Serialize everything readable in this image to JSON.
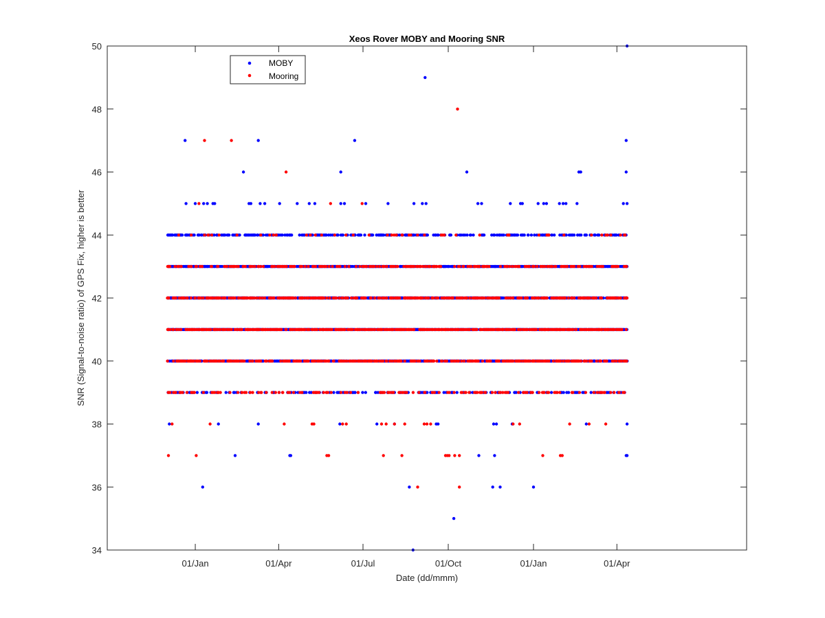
{
  "chart_data": {
    "type": "scatter",
    "title": "Xeos Rover MOBY and Mooring SNR",
    "xlabel": "Date (dd/mmm)",
    "ylabel": "SNR (Signal-to-noise ratio) of GPS Fix, higher is better",
    "xlim_days": [
      -95,
      595
    ],
    "ylim": [
      34,
      50
    ],
    "yticks": [
      34,
      36,
      38,
      40,
      42,
      44,
      46,
      48,
      50
    ],
    "xticks": [
      {
        "label": "01/Jan",
        "day": 0
      },
      {
        "label": "01/Apr",
        "day": 90
      },
      {
        "label": "01/Jul",
        "day": 181
      },
      {
        "label": "01/Oct",
        "day": 273
      },
      {
        "label": "01/Jan",
        "day": 365
      },
      {
        "label": "01/Apr",
        "day": 455
      }
    ],
    "data_range_days": [
      -30,
      466
    ],
    "legend": {
      "position": "top-left",
      "entries": [
        "MOBY",
        "Mooring"
      ]
    },
    "series": [
      {
        "name": "MOBY",
        "color": "#0000ff",
        "dense_levels": [
          {
            "snr": 40,
            "density": 0.55
          },
          {
            "snr": 41,
            "density": 0.75
          },
          {
            "snr": 42,
            "density": 0.7
          },
          {
            "snr": 43,
            "density": 0.6
          },
          {
            "snr": 44,
            "density": 0.3
          },
          {
            "snr": 39,
            "density": 0.18
          }
        ],
        "points": [
          {
            "day": -11,
            "snr": 47
          },
          {
            "day": 68,
            "snr": 47
          },
          {
            "day": 172,
            "snr": 47
          },
          {
            "day": 465,
            "snr": 47
          },
          {
            "day": 52,
            "snr": 46
          },
          {
            "day": 157,
            "snr": 46
          },
          {
            "day": 293,
            "snr": 46
          },
          {
            "day": 414,
            "snr": 46
          },
          {
            "day": 416,
            "snr": 46
          },
          {
            "day": 465,
            "snr": 46
          },
          {
            "day": 248,
            "snr": 49
          },
          {
            "day": 466,
            "snr": 50
          },
          {
            "day": 235,
            "snr": 34
          },
          {
            "day": 279,
            "snr": 35
          },
          {
            "day": -10,
            "snr": 45
          },
          {
            "day": 0,
            "snr": 45
          },
          {
            "day": 9,
            "snr": 45
          },
          {
            "day": 13,
            "snr": 45
          },
          {
            "day": 19,
            "snr": 45
          },
          {
            "day": 21,
            "snr": 45
          },
          {
            "day": 58,
            "snr": 45
          },
          {
            "day": 60,
            "snr": 45
          },
          {
            "day": 70,
            "snr": 45
          },
          {
            "day": 75,
            "snr": 45
          },
          {
            "day": 91,
            "snr": 45
          },
          {
            "day": 110,
            "snr": 45
          },
          {
            "day": 123,
            "snr": 45
          },
          {
            "day": 129,
            "snr": 45
          },
          {
            "day": 157,
            "snr": 45
          },
          {
            "day": 161,
            "snr": 45
          },
          {
            "day": 184,
            "snr": 45
          },
          {
            "day": 208,
            "snr": 45
          },
          {
            "day": 236,
            "snr": 45
          },
          {
            "day": 245,
            "snr": 45
          },
          {
            "day": 249,
            "snr": 45
          },
          {
            "day": 305,
            "snr": 45
          },
          {
            "day": 309,
            "snr": 45
          },
          {
            "day": 340,
            "snr": 45
          },
          {
            "day": 351,
            "snr": 45
          },
          {
            "day": 353,
            "snr": 45
          },
          {
            "day": 370,
            "snr": 45
          },
          {
            "day": 376,
            "snr": 45
          },
          {
            "day": 379,
            "snr": 45
          },
          {
            "day": 393,
            "snr": 45
          },
          {
            "day": 397,
            "snr": 45
          },
          {
            "day": 400,
            "snr": 45
          },
          {
            "day": 412,
            "snr": 45
          },
          {
            "day": 462,
            "snr": 45
          },
          {
            "day": 466,
            "snr": 45
          },
          {
            "day": -28,
            "snr": 38
          },
          {
            "day": 25,
            "snr": 38
          },
          {
            "day": 68,
            "snr": 38
          },
          {
            "day": 156,
            "snr": 38
          },
          {
            "day": 196,
            "snr": 38
          },
          {
            "day": 215,
            "snr": 38
          },
          {
            "day": 260,
            "snr": 38
          },
          {
            "day": 262,
            "snr": 38
          },
          {
            "day": 322,
            "snr": 38
          },
          {
            "day": 325,
            "snr": 38
          },
          {
            "day": 342,
            "snr": 38
          },
          {
            "day": 422,
            "snr": 38
          },
          {
            "day": 466,
            "snr": 38
          },
          {
            "day": 43,
            "snr": 37
          },
          {
            "day": 102,
            "snr": 37
          },
          {
            "day": 103,
            "snr": 37
          },
          {
            "day": 306,
            "snr": 37
          },
          {
            "day": 323,
            "snr": 37
          },
          {
            "day": 465,
            "snr": 37
          },
          {
            "day": 466,
            "snr": 37
          },
          {
            "day": 8,
            "snr": 36
          },
          {
            "day": 231,
            "snr": 36
          },
          {
            "day": 321,
            "snr": 36
          },
          {
            "day": 329,
            "snr": 36
          },
          {
            "day": 365,
            "snr": 36
          }
        ]
      },
      {
        "name": "Mooring",
        "color": "#ff0000",
        "dense_levels": [
          {
            "snr": 40,
            "density": 0.3
          },
          {
            "snr": 41,
            "density": 0.4
          },
          {
            "snr": 42,
            "density": 0.35
          },
          {
            "snr": 43,
            "density": 0.2
          },
          {
            "snr": 39,
            "density": 0.15
          },
          {
            "snr": 44,
            "density": 0.05
          }
        ],
        "points": [
          {
            "day": 283,
            "snr": 48
          },
          {
            "day": 10,
            "snr": 47
          },
          {
            "day": 39,
            "snr": 47
          },
          {
            "day": 98,
            "snr": 46
          },
          {
            "day": 4,
            "snr": 45
          },
          {
            "day": 146,
            "snr": 45
          },
          {
            "day": 180,
            "snr": 45
          },
          {
            "day": -25,
            "snr": 38
          },
          {
            "day": 16,
            "snr": 38
          },
          {
            "day": 96,
            "snr": 38
          },
          {
            "day": 126,
            "snr": 38
          },
          {
            "day": 128,
            "snr": 38
          },
          {
            "day": 159,
            "snr": 38
          },
          {
            "day": 163,
            "snr": 38
          },
          {
            "day": 201,
            "snr": 38
          },
          {
            "day": 206,
            "snr": 38
          },
          {
            "day": 215,
            "snr": 38
          },
          {
            "day": 226,
            "snr": 38
          },
          {
            "day": 247,
            "snr": 38
          },
          {
            "day": 250,
            "snr": 38
          },
          {
            "day": 254,
            "snr": 38
          },
          {
            "day": 343,
            "snr": 38
          },
          {
            "day": 350,
            "snr": 38
          },
          {
            "day": 404,
            "snr": 38
          },
          {
            "day": 425,
            "snr": 38
          },
          {
            "day": 443,
            "snr": 38
          },
          {
            "day": -29,
            "snr": 37
          },
          {
            "day": 1,
            "snr": 37
          },
          {
            "day": 142,
            "snr": 37
          },
          {
            "day": 144,
            "snr": 37
          },
          {
            "day": 203,
            "snr": 37
          },
          {
            "day": 223,
            "snr": 37
          },
          {
            "day": 285,
            "snr": 37
          },
          {
            "day": 270,
            "snr": 37
          },
          {
            "day": 272,
            "snr": 37
          },
          {
            "day": 274,
            "snr": 37
          },
          {
            "day": 280,
            "snr": 37
          },
          {
            "day": 375,
            "snr": 37
          },
          {
            "day": 394,
            "snr": 37
          },
          {
            "day": 396,
            "snr": 37
          },
          {
            "day": 240,
            "snr": 36
          },
          {
            "day": 285,
            "snr": 36
          }
        ]
      }
    ]
  }
}
